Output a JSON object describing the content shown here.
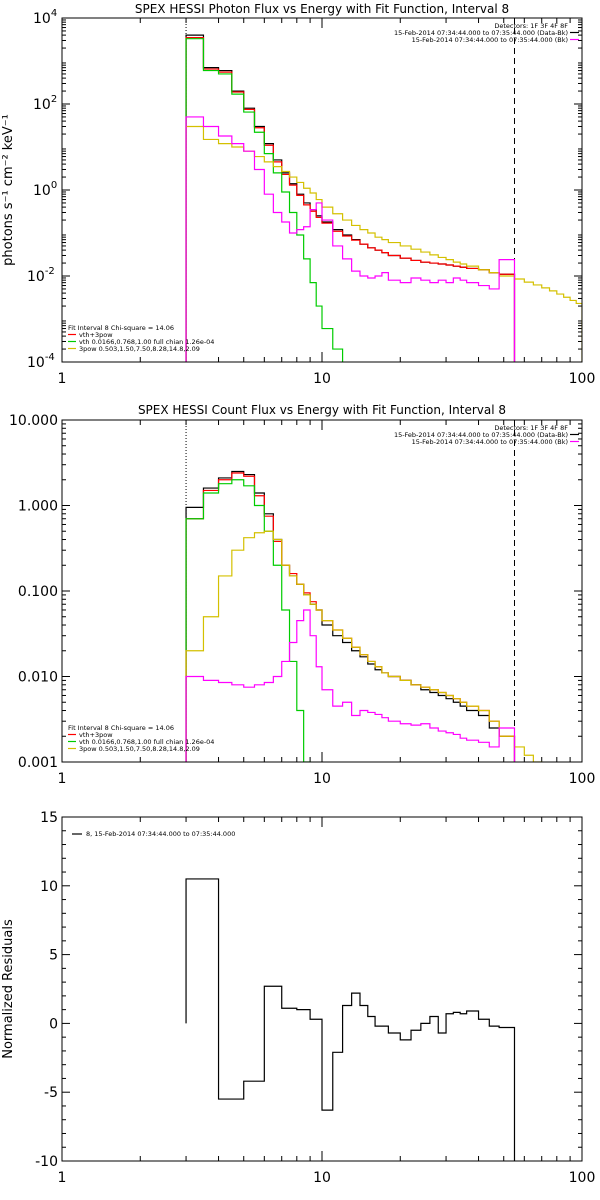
{
  "chart_data": [
    {
      "type": "line",
      "title": "SPEX HESSI Photon Flux vs Energy with Fit Function, Interval 8",
      "ylabel": "photons s⁻¹ cm⁻² keV⁻¹",
      "xscale": "log",
      "yscale": "log",
      "xlim": [
        1,
        100
      ],
      "ylim": [
        0.0001,
        10000
      ],
      "x_ticks": [
        {
          "v": 1,
          "t": "1"
        },
        {
          "v": 10,
          "t": "10"
        },
        {
          "v": 100,
          "t": "100"
        }
      ],
      "y_ticks": [
        {
          "v": 0.0001,
          "b": "10",
          "e": "-4"
        },
        {
          "v": 0.01,
          "b": "10",
          "e": "-2"
        },
        {
          "v": 1,
          "b": "10",
          "e": "0"
        },
        {
          "v": 100,
          "b": "10",
          "e": "2"
        },
        {
          "v": 10000,
          "b": "10",
          "e": "4"
        }
      ],
      "vlines": [
        {
          "x": 3.0,
          "style": "dotted",
          "color": "#000000"
        },
        {
          "x": 55,
          "style": "dashed",
          "color": "#000000"
        }
      ],
      "header": {
        "lines": [
          "Detectors: 1F 3F 4F 8F",
          "15-Feb-2014 07:34:44.000 to 07:35:44.000 (Data-Bk)",
          "15-Feb-2014 07:34:44.000 to 07:35:44.000 (Bk)"
        ],
        "colors": [
          "#000000",
          "#000000",
          "#ff00ff"
        ]
      },
      "legend": {
        "lines": [
          {
            "text": "Fit Interval 8   Chi-square = 14.06",
            "color": null
          },
          {
            "text": "vth+3pow",
            "color": "#ff0000"
          },
          {
            "text": "vth 0.0166,0.768,1.00  full chian 1.26e-04",
            "color": "#00cc00"
          },
          {
            "text": "3pow 0.503,1.50,7.50,8.28,14.8,2.09",
            "color": "#d4c000"
          }
        ]
      },
      "edges": [
        3.0,
        3.5,
        4.0,
        4.5,
        5.0,
        5.5,
        6.0,
        6.5,
        7.0,
        7.5,
        8.0,
        8.5,
        9.0,
        9.5,
        10.0,
        11.0,
        12.0,
        13.0,
        14.0,
        15.0,
        16.0,
        17.0,
        18.0,
        20.0,
        22.0,
        24.0,
        26.0,
        28.0,
        30.0,
        32.0,
        34.0,
        36.0,
        40.0,
        44.0,
        48.0,
        55.0
      ],
      "series": [
        {
          "name": "",
          "color": "#000000",
          "values": [
            4000,
            700,
            600,
            200,
            80,
            30,
            12,
            5,
            2.5,
            1.4,
            0.8,
            0.5,
            0.35,
            0.25,
            0.18,
            0.12,
            0.09,
            0.07,
            0.055,
            0.045,
            0.04,
            0.035,
            0.03,
            0.026,
            0.023,
            0.021,
            0.02,
            0.019,
            0.018,
            0.017,
            0.016,
            0.015,
            0.014,
            0.012,
            0.011
          ]
        },
        {
          "name": "",
          "color": "#ff0000",
          "values": [
            3500,
            650,
            550,
            190,
            75,
            28,
            11,
            4.5,
            2.3,
            1.3,
            0.75,
            0.45,
            0.32,
            0.23,
            0.17,
            0.11,
            0.085,
            0.068,
            0.055,
            0.045,
            0.04,
            0.035,
            0.03,
            0.026,
            0.023,
            0.021,
            0.02,
            0.019,
            0.018,
            0.017,
            0.016,
            0.015,
            0.014,
            0.012,
            0.011
          ]
        },
        {
          "name": "",
          "color": "#00cc00",
          "values": [
            3300,
            600,
            500,
            170,
            65,
            22,
            7,
            2.5,
            0.9,
            0.3,
            0.09,
            0.025,
            0.007,
            0.002,
            0.0006,
            0.0002,
            7e-05
          ]
        },
        {
          "name": "",
          "color": "#d4c000",
          "values": [
            30,
            15,
            12,
            10,
            8,
            6,
            4.5,
            3.5,
            2.7,
            2,
            1.5,
            1.1,
            0.85,
            0.6,
            0.4,
            0.28,
            0.2,
            0.15,
            0.12,
            0.1,
            0.08,
            0.07,
            0.06,
            0.05,
            0.042,
            0.036,
            0.031,
            0.027,
            0.024,
            0.021,
            0.019,
            0.017,
            0.014,
            0.012,
            0.01,
            0.0085,
            0.0072,
            0.0062,
            0.0053,
            0.0045,
            0.0038,
            0.0032,
            0.0027,
            0.0023,
            0.002
          ],
          "edges_ext": [
            3.0,
            3.5,
            4.0,
            4.5,
            5.0,
            5.5,
            6.0,
            6.5,
            7.0,
            7.5,
            8.0,
            8.5,
            9.0,
            9.5,
            10.0,
            11.0,
            12.0,
            13.0,
            14.0,
            15.0,
            16.0,
            17.0,
            18.0,
            20.0,
            22.0,
            24.0,
            26.0,
            28.0,
            30.0,
            32.0,
            34.0,
            36.0,
            40.0,
            44.0,
            48.0,
            55.0,
            60.0,
            65.0,
            70.0,
            75.0,
            80.0,
            85.0,
            90.0,
            95.0,
            100.0
          ]
        },
        {
          "name": "",
          "color": "#ff00ff",
          "values": [
            50,
            30,
            18,
            12,
            8,
            3,
            0.8,
            0.3,
            0.18,
            0.1,
            0.12,
            0.14,
            0.35,
            0.5,
            0.2,
            0.05,
            0.025,
            0.013,
            0.01,
            0.009,
            0.01,
            0.012,
            0.008,
            0.007,
            0.009,
            0.008,
            0.007,
            0.008,
            0.007,
            0.009,
            0.008,
            0.007,
            0.006,
            0.005,
            0.024
          ]
        }
      ]
    },
    {
      "type": "line",
      "title": "SPEX HESSI Count Flux vs Energy with Fit Function, Interval 8",
      "ylabel": "",
      "xscale": "log",
      "yscale": "log",
      "xlim": [
        1,
        100
      ],
      "ylim": [
        0.001,
        10
      ],
      "x_ticks": [
        {
          "v": 1,
          "t": "1"
        },
        {
          "v": 10,
          "t": "10"
        },
        {
          "v": 100,
          "t": "100"
        }
      ],
      "y_ticks": [
        {
          "v": 0.001,
          "t": "0.001"
        },
        {
          "v": 0.01,
          "t": "0.010"
        },
        {
          "v": 0.1,
          "t": "0.100"
        },
        {
          "v": 1,
          "t": "1.000"
        },
        {
          "v": 10,
          "t": "10.000"
        }
      ],
      "vlines": [
        {
          "x": 3.0,
          "style": "dotted",
          "color": "#000000"
        },
        {
          "x": 55,
          "style": "dashed",
          "color": "#000000"
        }
      ],
      "header": {
        "lines": [
          "Detectors: 1F 3F 4F 8F",
          "15-Feb-2014 07:34:44.000 to 07:35:44.000 (Data-Bk)",
          "15-Feb-2014 07:34:44.000 to 07:35:44.000 (Bk)"
        ],
        "colors": [
          "#000000",
          "#000000",
          "#ff00ff"
        ]
      },
      "legend": {
        "lines": [
          {
            "text": "Fit Interval 8   Chi-square = 14.06",
            "color": null
          },
          {
            "text": "vth+3pow",
            "color": "#ff0000"
          },
          {
            "text": "vth 0.0166,0.768,1.00  full chian 1.26e-04",
            "color": "#00cc00"
          },
          {
            "text": "3pow 0.503,1.50,7.50,8.28,14.8,2.09",
            "color": "#d4c000"
          }
        ]
      },
      "edges": [
        3.0,
        3.5,
        4.0,
        4.5,
        5.0,
        5.5,
        6.0,
        6.5,
        7.0,
        7.5,
        8.0,
        8.5,
        9.0,
        9.5,
        10.0,
        11.0,
        12.0,
        13.0,
        14.0,
        15.0,
        16.0,
        17.0,
        18.0,
        20.0,
        22.0,
        24.0,
        26.0,
        28.0,
        30.0,
        32.0,
        34.0,
        36.0,
        40.0,
        44.0,
        48.0,
        55.0
      ],
      "series": [
        {
          "name": "",
          "color": "#000000",
          "values": [
            0.95,
            1.6,
            2.1,
            2.5,
            2.3,
            1.4,
            0.8,
            0.4,
            0.2,
            0.15,
            0.12,
            0.09,
            0.07,
            0.06,
            0.04,
            0.03,
            0.025,
            0.02,
            0.017,
            0.014,
            0.012,
            0.011,
            0.01,
            0.009,
            0.008,
            0.007,
            0.0065,
            0.006,
            0.0055,
            0.005,
            0.0045,
            0.004,
            0.0035,
            0.0025,
            0.002
          ]
        },
        {
          "name": "",
          "color": "#ff0000",
          "values": [
            0.7,
            1.5,
            2.0,
            2.4,
            2.2,
            1.3,
            0.75,
            0.38,
            0.2,
            0.16,
            0.12,
            0.095,
            0.075,
            0.06,
            0.045,
            0.035,
            0.028,
            0.022,
            0.018,
            0.015,
            0.013,
            0.011,
            0.01,
            0.009,
            0.008,
            0.0075,
            0.007,
            0.0065,
            0.006,
            0.0055,
            0.005,
            0.0045,
            0.004,
            0.003,
            0.002
          ]
        },
        {
          "name": "",
          "color": "#00cc00",
          "values": [
            0.7,
            1.4,
            1.8,
            2.0,
            1.7,
            1.0,
            0.5,
            0.2,
            0.06,
            0.015,
            0.004,
            0.001,
            0.0005
          ]
        },
        {
          "name": "",
          "color": "#d4c000",
          "values": [
            0.02,
            0.05,
            0.15,
            0.3,
            0.42,
            0.48,
            0.5,
            0.4,
            0.2,
            0.15,
            0.12,
            0.09,
            0.07,
            0.06,
            0.045,
            0.035,
            0.028,
            0.022,
            0.018,
            0.015,
            0.013,
            0.011,
            0.01,
            0.009,
            0.008,
            0.0075,
            0.007,
            0.0065,
            0.006,
            0.0055,
            0.005,
            0.0045,
            0.004,
            0.003,
            0.002,
            0.0015,
            0.0012,
            0.001
          ],
          "edges_ext": [
            3.0,
            3.5,
            4.0,
            4.5,
            5.0,
            5.5,
            6.0,
            6.5,
            7.0,
            7.5,
            8.0,
            8.5,
            9.0,
            9.5,
            10.0,
            11.0,
            12.0,
            13.0,
            14.0,
            15.0,
            16.0,
            17.0,
            18.0,
            20.0,
            22.0,
            24.0,
            26.0,
            28.0,
            30.0,
            32.0,
            34.0,
            36.0,
            40.0,
            44.0,
            48.0,
            55.0,
            60.0,
            65.0,
            70.0
          ]
        },
        {
          "name": "",
          "color": "#ff00ff",
          "values": [
            0.01,
            0.009,
            0.0085,
            0.008,
            0.0075,
            0.008,
            0.0085,
            0.01,
            0.015,
            0.025,
            0.045,
            0.06,
            0.03,
            0.013,
            0.007,
            0.0045,
            0.005,
            0.0035,
            0.004,
            0.0038,
            0.0036,
            0.0033,
            0.003,
            0.0028,
            0.0027,
            0.0028,
            0.0025,
            0.0023,
            0.0022,
            0.0021,
            0.0019,
            0.0018,
            0.0017,
            0.0015,
            0.0025
          ]
        }
      ]
    },
    {
      "type": "line",
      "title": "",
      "ylabel": "Normalized Residuals",
      "xscale": "log",
      "yscale": "linear",
      "xlim": [
        1,
        100
      ],
      "ylim": [
        -10,
        15
      ],
      "x_ticks": [
        {
          "v": 1,
          "t": "1"
        },
        {
          "v": 10,
          "t": "10"
        },
        {
          "v": 100,
          "t": "100"
        }
      ],
      "y_ticks": [
        {
          "v": -10,
          "t": "-10"
        },
        {
          "v": -5,
          "t": "-5"
        },
        {
          "v": 0,
          "t": "0"
        },
        {
          "v": 5,
          "t": "5"
        },
        {
          "v": 10,
          "t": "10"
        },
        {
          "v": 15,
          "t": "15"
        }
      ],
      "vlines": [],
      "header": null,
      "legend": {
        "lines": [
          {
            "text": "8, 15-Feb-2014 07:34:44.000 to 07:35:44.000",
            "color": "#000000",
            "swatch": true
          }
        ]
      },
      "edges": [
        3.0,
        4.0,
        5.0,
        6.0,
        7.0,
        8.0,
        9.0,
        10.0,
        11.0,
        12.0,
        13.0,
        14.0,
        15.0,
        16.0,
        18.0,
        20.0,
        22.0,
        24.0,
        26.0,
        28.0,
        30.0,
        32.0,
        34.0,
        36.0,
        40.0,
        44.0,
        48.0,
        55.0
      ],
      "series": [
        {
          "name": "",
          "color": "#000000",
          "values": [
            10.5,
            -5.5,
            -4.2,
            2.7,
            1.1,
            1.0,
            0.3,
            -6.3,
            -2.1,
            1.3,
            2.2,
            1.3,
            0.5,
            -0.2,
            -0.7,
            -1.2,
            -0.5,
            0.0,
            0.5,
            -0.7,
            0.7,
            0.8,
            0.7,
            0.9,
            0.3,
            -0.2,
            -0.3
          ]
        }
      ]
    }
  ]
}
